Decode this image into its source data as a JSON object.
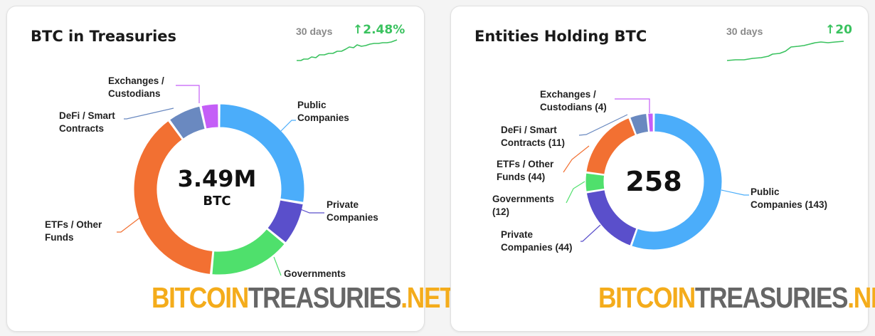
{
  "colors": {
    "public": "#4badfa",
    "private": "#5a4fcb",
    "governments": "#4fe06c",
    "etfs": "#f27032",
    "defi": "#6a89c0",
    "exchanges": "#c45ef7",
    "spark": "#3ac25f"
  },
  "logo": {
    "part1": "BITCOIN",
    "part2": "TREASURIES",
    "part3": ".NET"
  },
  "chart_data": [
    {
      "type": "pie",
      "title": "BTC in Treasuries",
      "center_value": "3.49M",
      "center_unit": "BTC",
      "trend": {
        "period": "30 days",
        "change": "2.48%",
        "direction": "up"
      },
      "categories": [
        "Public Companies",
        "Private Companies",
        "Governments",
        "ETFs / Other Funds",
        "DeFi / Smart Contracts",
        "Exchanges / Custodians"
      ],
      "label_lines": [
        [
          "Public",
          "Companies"
        ],
        [
          "Private",
          "Companies"
        ],
        [
          "Governments"
        ],
        [
          "ETFs / Other",
          "Funds"
        ],
        [
          "DeFi / Smart",
          "Contracts"
        ],
        [
          "Exchanges /",
          "Custodians"
        ]
      ],
      "values": [
        0.276,
        0.083,
        0.156,
        0.385,
        0.065,
        0.035
      ]
    },
    {
      "type": "pie",
      "title": "Entities Holding BTC",
      "center_value": "258",
      "trend": {
        "period": "30 days",
        "change": "20",
        "direction": "up"
      },
      "categories": [
        "Public Companies",
        "Private Companies",
        "Governments",
        "ETFs / Other Funds",
        "DeFi / Smart Contracts",
        "Exchanges / Custodians"
      ],
      "label_lines": [
        [
          "Public",
          "Companies (143)"
        ],
        [
          "Private",
          "Companies (44)"
        ],
        [
          "Governments",
          "(12)"
        ],
        [
          "ETFs / Other",
          "Funds (44)"
        ],
        [
          "DeFi / Smart",
          "Contracts (11)"
        ],
        [
          "Exchanges /",
          "Custodians (4)"
        ]
      ],
      "values": [
        143,
        44,
        12,
        44,
        11,
        4
      ]
    }
  ]
}
